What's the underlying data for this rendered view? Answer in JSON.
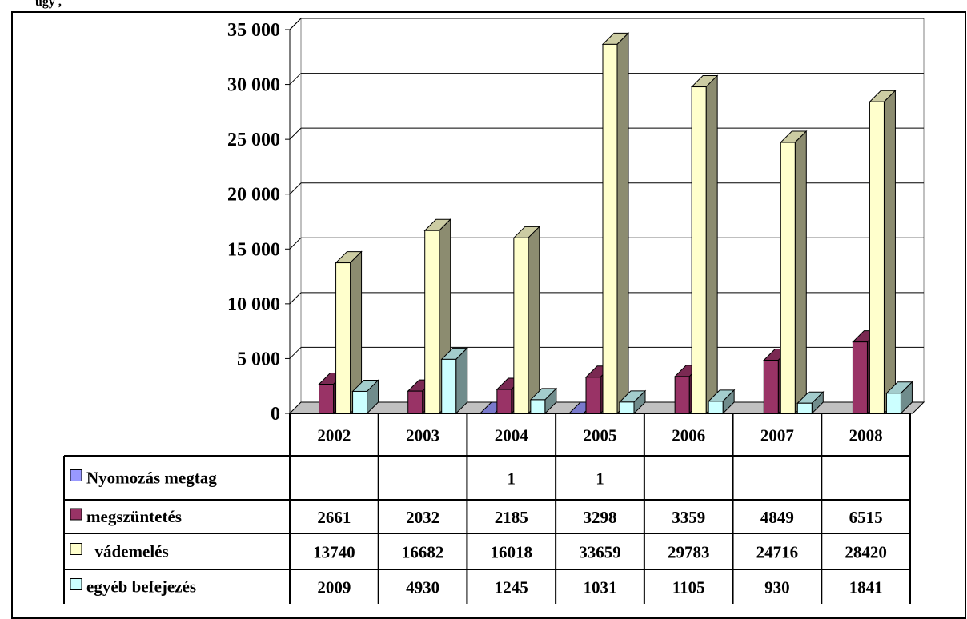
{
  "caption": "ügy         ,",
  "chart_data": {
    "type": "bar",
    "categories": [
      "2002",
      "2003",
      "2004",
      "2005",
      "2006",
      "2007",
      "2008"
    ],
    "ylim": [
      0,
      35000
    ],
    "yticks": [
      0,
      5000,
      10000,
      15000,
      20000,
      25000,
      30000,
      35000
    ],
    "ytick_labels": [
      "0",
      "5 000",
      "10 000",
      "15 000",
      "20 000",
      "25 000",
      "30 000",
      "35 000"
    ],
    "grid": true,
    "legend_position": "data-table",
    "series": [
      {
        "name": "Nyomozás megtag",
        "color": "#9999ff",
        "values": [
          null,
          null,
          1,
          1,
          null,
          null,
          null
        ],
        "labels": [
          "",
          "",
          "1",
          "1",
          "",
          "",
          ""
        ]
      },
      {
        "name": "megszüntetés",
        "color": "#993366",
        "values": [
          2661,
          2032,
          2185,
          3298,
          3359,
          4849,
          6515
        ],
        "labels": [
          "2661",
          "2032",
          "2185",
          "3298",
          "3359",
          "4849",
          "6515"
        ]
      },
      {
        "name": "  vádemelés",
        "color": "#ffffcc",
        "values": [
          13740,
          16682,
          16018,
          33659,
          29783,
          24716,
          28420
        ],
        "labels": [
          "13740",
          "16682",
          "16018",
          "33659",
          "29783",
          "24716",
          "28420"
        ]
      },
      {
        "name": "egyéb befejezés",
        "color": "#ccffff",
        "values": [
          2009,
          4930,
          1245,
          1031,
          1105,
          930,
          1841
        ],
        "labels": [
          "2009",
          "4930",
          "1245",
          "1031",
          "1105",
          "930",
          "1841"
        ]
      }
    ]
  }
}
